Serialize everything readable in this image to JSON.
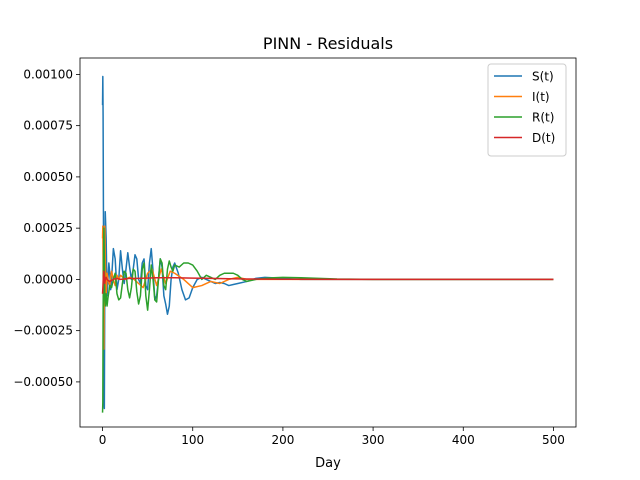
{
  "chart_data": {
    "type": "line",
    "title": "PINN - Residuals",
    "xlabel": "Day",
    "ylabel": "",
    "xlim": [
      -25,
      525
    ],
    "ylim": [
      -0.00072,
      0.00108
    ],
    "xticks": [
      0,
      100,
      200,
      300,
      400,
      500
    ],
    "xtick_labels": [
      "0",
      "100",
      "200",
      "300",
      "400",
      "500"
    ],
    "yticks": [
      -0.0005,
      -0.00025,
      0.0,
      0.00025,
      0.0005,
      0.00075,
      0.001
    ],
    "ytick_labels": [
      "−0.00050",
      "−0.00025",
      "0.00000",
      "0.00025",
      "0.00050",
      "0.00075",
      "0.00100"
    ],
    "grid": false,
    "legend_position": "top-right",
    "series": [
      {
        "name": "S(t)",
        "color": "#1f77b4",
        "x": [
          0,
          0.3,
          0.6,
          1,
          1.5,
          2,
          2.5,
          3,
          4,
          5,
          6,
          7,
          8,
          9,
          10,
          12,
          14,
          16,
          18,
          20,
          22,
          24,
          26,
          28,
          30,
          32,
          34,
          36,
          38,
          40,
          42,
          44,
          46,
          48,
          50,
          52,
          54,
          56,
          58,
          60,
          62,
          64,
          66,
          68,
          70,
          72,
          74,
          76,
          78,
          80,
          84,
          88,
          92,
          96,
          100,
          105,
          110,
          115,
          120,
          125,
          130,
          135,
          140,
          145,
          150,
          160,
          170,
          180,
          200,
          220,
          260,
          300,
          400,
          500
        ],
        "y": [
          0.00085,
          0.00099,
          0.0008,
          0.0003,
          -0.0006,
          -0.00063,
          0.0,
          0.00033,
          0.0002,
          -8e-05,
          0.0,
          8e-05,
          3e-05,
          -5e-05,
          0.0,
          0.00015,
          0.0001,
          -5e-05,
          0.0,
          0.00014,
          5e-05,
          -2e-05,
          5e-05,
          0.00013,
          6e-05,
          0.0,
          5e-05,
          0.00012,
          0.0001,
          0.0,
          -2e-05,
          8e-05,
          0.0001,
          -3e-05,
          -5e-05,
          8e-05,
          0.00015,
          4e-05,
          -0.0001,
          -8e-05,
          0.0,
          0.0001,
          6e-05,
          -8e-05,
          -0.00012,
          -0.00017,
          -0.00013,
          0.0,
          6e-05,
          8e-05,
          3e-05,
          -5e-05,
          -0.0001,
          -9e-05,
          -4e-05,
          0.0,
          1e-05,
          0.0,
          -1e-05,
          -2e-05,
          -1.5e-05,
          -2e-05,
          -3e-05,
          -2.5e-05,
          -2e-05,
          -1e-05,
          5e-06,
          1e-05,
          5e-06,
          0.0,
          0.0,
          0.0,
          0.0,
          0.0
        ]
      },
      {
        "name": "I(t)",
        "color": "#ff7f0e",
        "x": [
          0,
          0.3,
          0.6,
          1,
          1.5,
          2,
          2.5,
          3,
          4,
          5,
          6,
          8,
          10,
          12,
          14,
          16,
          18,
          20,
          25,
          30,
          35,
          40,
          45,
          50,
          55,
          60,
          65,
          70,
          75,
          80,
          90,
          100,
          110,
          120,
          130,
          140,
          150,
          160,
          200,
          500
        ],
        "y": [
          0.0002,
          0.00026,
          0.0001,
          -0.00033,
          -0.00034,
          0.0002,
          0.00026,
          0.0001,
          -8e-05,
          3e-05,
          0.0,
          -3e-05,
          4e-05,
          0.0,
          -3e-05,
          2e-05,
          0.0,
          2e-05,
          0.0,
          1e-05,
          0.0,
          -2e-05,
          -4e-05,
          3e-05,
          5e-05,
          -3e-05,
          5e-05,
          -2e-05,
          4e-05,
          3e-05,
          0.0,
          -4e-05,
          -3e-05,
          -1e-05,
          -2e-05,
          0.0,
          1e-05,
          0.0,
          0.0,
          0.0
        ]
      },
      {
        "name": "R(t)",
        "color": "#2ca02c",
        "x": [
          0,
          0.3,
          0.6,
          1,
          1.5,
          2,
          2.5,
          3,
          4,
          5,
          6,
          8,
          10,
          12,
          14,
          16,
          18,
          20,
          22,
          24,
          26,
          28,
          30,
          32,
          34,
          36,
          38,
          40,
          42,
          44,
          46,
          48,
          50,
          52,
          54,
          56,
          58,
          60,
          62,
          64,
          66,
          68,
          70,
          72,
          74,
          76,
          78,
          80,
          85,
          90,
          95,
          100,
          105,
          110,
          115,
          120,
          125,
          130,
          135,
          140,
          145,
          150,
          155,
          160,
          170,
          180,
          190,
          200,
          220,
          240,
          260,
          300,
          500
        ],
        "y": [
          -0.00065,
          -0.0006,
          -0.0002,
          0.0001,
          0.00025,
          0.0001,
          -0.0001,
          -0.00013,
          -7e-05,
          -0.00013,
          -9e-05,
          -3e-05,
          -4e-05,
          0.0,
          3e-05,
          -7e-05,
          -0.0001,
          -9e-05,
          -2e-05,
          4e-05,
          3e-05,
          -5e-05,
          -9e-05,
          -4e-05,
          5e-05,
          4e-05,
          -6e-05,
          -0.00012,
          -8e-05,
          5e-05,
          8e-05,
          -8e-05,
          -0.00015,
          -5e-05,
          7e-05,
          0.0,
          -0.0001,
          -0.00011,
          0.0,
          0.0001,
          8e-05,
          -3e-05,
          -5e-05,
          5e-05,
          9e-05,
          6e-05,
          4e-05,
          7e-05,
          6e-05,
          8e-05,
          8e-05,
          7e-05,
          4e-05,
          0.0,
          2e-05,
          1e-05,
          0.0,
          2e-05,
          3e-05,
          3e-05,
          3e-05,
          2e-05,
          0.0,
          -1e-05,
          0.0,
          5e-06,
          8e-06,
          1e-05,
          8e-06,
          5e-06,
          2e-06,
          0.0,
          0.0
        ]
      },
      {
        "name": "D(t)",
        "color": "#d62728",
        "x": [
          0,
          0.5,
          1,
          1.5,
          2,
          2.5,
          3,
          4,
          5,
          6,
          8,
          10,
          12,
          15,
          20,
          30,
          40,
          60,
          80,
          100,
          120,
          140,
          160,
          200,
          300,
          400,
          500
        ],
        "y": [
          -7e-05,
          -3e-05,
          2e-05,
          4e-05,
          1e-05,
          -2e-05,
          0.0,
          1e-05,
          0.0,
          -5e-06,
          -1e-05,
          -5e-06,
          0.0,
          5e-06,
          0.0,
          5e-06,
          5e-06,
          8e-06,
          8e-06,
          6e-06,
          5e-06,
          3e-06,
          2e-06,
          1e-06,
          0.0,
          0.0,
          0.0
        ]
      }
    ]
  }
}
